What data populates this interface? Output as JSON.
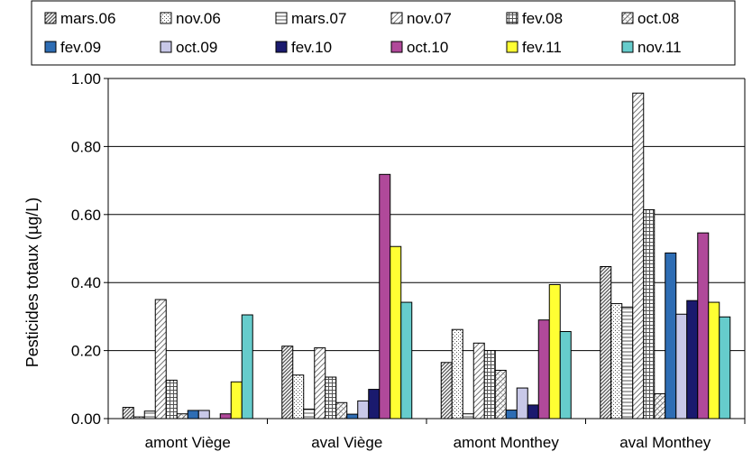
{
  "chart_data": {
    "type": "bar",
    "title": "",
    "xlabel": "",
    "ylabel": "Pesticides totaux (µg/L)",
    "ylim": [
      0,
      1.0
    ],
    "yticks": [
      "0.00",
      "0.20",
      "0.40",
      "0.60",
      "0.80",
      "1.00"
    ],
    "grid": true,
    "legend_position": "top",
    "categories": [
      "amont Viège",
      "aval Viège",
      "amont Monthey",
      "aval Monthey"
    ],
    "series": [
      {
        "name": "mars.06",
        "pattern": "diag-dense",
        "color": "#808080",
        "values": [
          0.033,
          0.213,
          0.165,
          0.447
        ]
      },
      {
        "name": "nov.06",
        "pattern": "dots",
        "color": "#808080",
        "values": [
          0.005,
          0.128,
          0.262,
          0.338
        ]
      },
      {
        "name": "mars.07",
        "pattern": "hlines",
        "color": "#808080",
        "values": [
          0.022,
          0.028,
          0.014,
          0.328
        ]
      },
      {
        "name": "nov.07",
        "pattern": "diag-light",
        "color": "#808080",
        "values": [
          0.35,
          0.208,
          0.222,
          0.957
        ]
      },
      {
        "name": "fev.08",
        "pattern": "grid",
        "color": "#808080",
        "values": [
          0.113,
          0.122,
          0.2,
          0.614
        ]
      },
      {
        "name": "oct.08",
        "pattern": "zigzag",
        "color": "#808080",
        "values": [
          0.014,
          0.047,
          0.142,
          0.073
        ]
      },
      {
        "name": "fev.09",
        "pattern": "solid",
        "color": "#2E6DB4",
        "values": [
          0.024,
          0.013,
          0.025,
          0.487
        ]
      },
      {
        "name": "oct.09",
        "pattern": "solid",
        "color": "#C8C8E8",
        "values": [
          0.024,
          0.052,
          0.09,
          0.307
        ]
      },
      {
        "name": "fev.10",
        "pattern": "solid",
        "color": "#1A1A6E",
        "values": [
          0.0,
          0.086,
          0.04,
          0.347
        ]
      },
      {
        "name": "oct.10",
        "pattern": "solid",
        "color": "#B0499A",
        "values": [
          0.014,
          0.718,
          0.29,
          0.546
        ]
      },
      {
        "name": "fev.11",
        "pattern": "solid",
        "color": "#FFFF33",
        "values": [
          0.108,
          0.506,
          0.394,
          0.342
        ]
      },
      {
        "name": "nov.11",
        "pattern": "solid",
        "color": "#66CCCC",
        "values": [
          0.305,
          0.342,
          0.256,
          0.299
        ]
      }
    ]
  }
}
